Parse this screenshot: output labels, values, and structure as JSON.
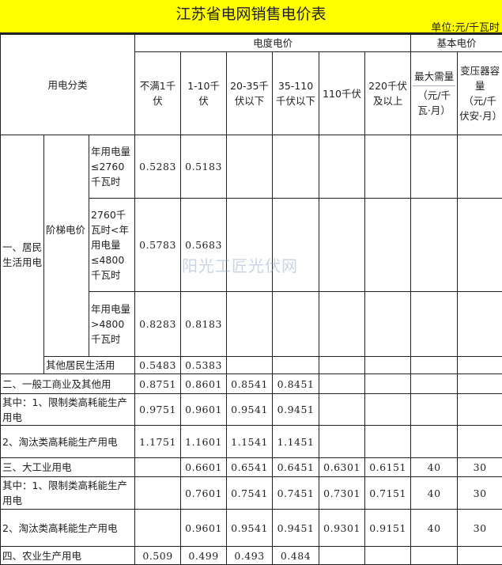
{
  "title": "江苏省电网销售电价表",
  "unit": "单位:元/千瓦时",
  "watermark": "阳光工匠光伏网",
  "header": {
    "category": "用电分类",
    "energy_price": "电度电价",
    "basic_price": "基本电价",
    "cols": [
      "不满1千伏",
      "1-10千伏",
      "20-35千伏以下",
      "35-110千伏以下",
      "110千伏",
      "220千伏及以上"
    ],
    "max_demand": "最大需量",
    "max_demand_unit": "（元/千瓦·月）",
    "transformer": "变压器容量",
    "transformer_unit": "（元/千伏安·月）"
  },
  "residential": {
    "label": "一、居民生活用电",
    "tiered": "阶梯电价",
    "tiers": [
      {
        "label": "年用电量≤2760千瓦时",
        "values": [
          "0.5283",
          "0.5183"
        ]
      },
      {
        "label": "2760千瓦时<年用电量≤4800千瓦时",
        "values": [
          "0.5783",
          "0.5683"
        ]
      },
      {
        "label": "年用电量>4800千瓦时",
        "values": [
          "0.8283",
          "0.8183"
        ]
      }
    ],
    "other": {
      "label": "其他居民生活用",
      "values": [
        "0.5483",
        "0.5383"
      ]
    }
  },
  "rows": [
    {
      "label": "二、一般工商业及其他用",
      "values": [
        "0.8751",
        "0.8601",
        "0.8541",
        "0.8451",
        "",
        "",
        "",
        ""
      ]
    },
    {
      "label": "其中：1、限制类高耗能生产用电",
      "values": [
        "0.9751",
        "0.9601",
        "0.9541",
        "0.9451",
        "",
        "",
        "",
        ""
      ]
    },
    {
      "label": "2、淘汰类高耗能生产用电",
      "values": [
        "1.1751",
        "1.1601",
        "1.1541",
        "1.1451",
        "",
        "",
        "",
        ""
      ]
    },
    {
      "label": "三、大工业用电",
      "values": [
        "",
        "0.6601",
        "0.6541",
        "0.6451",
        "0.6301",
        "0.6151",
        "40",
        "30"
      ]
    },
    {
      "label": "其中：1、限制类高耗能生产用电",
      "values": [
        "",
        "0.7601",
        "0.7541",
        "0.7451",
        "0.7301",
        "0.7151",
        "40",
        "30"
      ]
    },
    {
      "label": "2、淘汰类高耗能生产用电",
      "values": [
        "",
        "0.9601",
        "0.9541",
        "0.9451",
        "0.9301",
        "0.9151",
        "40",
        "30"
      ]
    },
    {
      "label": "四、农业生产用电",
      "values": [
        "0.509",
        "0.499",
        "0.493",
        "0.484",
        "",
        "",
        "",
        ""
      ]
    }
  ]
}
